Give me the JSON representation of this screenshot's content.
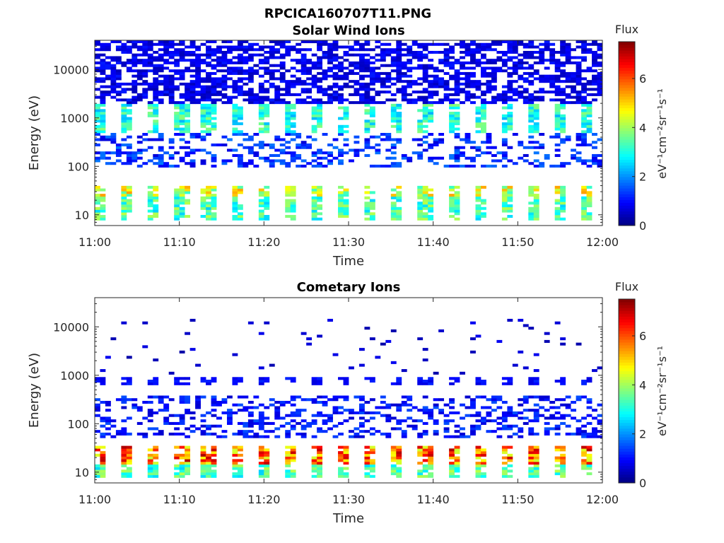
{
  "figure": {
    "title": "RPCICA160707T11.PNG"
  },
  "chart_data": [
    {
      "type": "heatmap",
      "title": "Solar Wind Ions",
      "xlabel": "Time",
      "ylabel": "Energy (eV)",
      "x_ticks": [
        "11:00",
        "11:10",
        "11:20",
        "11:30",
        "11:40",
        "11:50",
        "12:00"
      ],
      "xlim": [
        "11:00",
        "12:00"
      ],
      "y_scale": "log",
      "y_ticks": [
        10,
        100,
        1000,
        10000
      ],
      "y_tick_labels": [
        "10",
        "100",
        "1000",
        "10000"
      ],
      "ylim": [
        6,
        40000
      ],
      "colorbar": {
        "title": "Flux",
        "label": "eV⁻¹cm⁻²sr⁻¹s⁻¹",
        "ticks": [
          0,
          2,
          4,
          6
        ],
        "tick_labels": [
          "0",
          "2",
          "4",
          "6"
        ],
        "range": [
          0,
          7.5
        ],
        "colormap": "jet"
      },
      "pattern": {
        "sweep_period_min": 3.2,
        "bands": [
          {
            "energy_eV": [
              25,
              40
            ],
            "flux": 4.5,
            "note": "pulsed"
          },
          {
            "energy_eV": [
              8,
              25
            ],
            "flux": 3.5,
            "note": "pulsed"
          },
          {
            "energy_eV": [
              500,
              2000
            ],
            "flux": 3.2,
            "note": "pulsed"
          },
          {
            "energy_eV": [
              2000,
              40000
            ],
            "flux": 0.8,
            "note": "sparse high-energy background"
          },
          {
            "energy_eV": [
              100,
              500
            ],
            "flux": 1.3,
            "note": "sparse"
          }
        ]
      }
    },
    {
      "type": "heatmap",
      "title": "Cometary Ions",
      "xlabel": "Time",
      "ylabel": "Energy (eV)",
      "x_ticks": [
        "11:00",
        "11:10",
        "11:20",
        "11:30",
        "11:40",
        "11:50",
        "12:00"
      ],
      "xlim": [
        "11:00",
        "12:00"
      ],
      "y_scale": "log",
      "y_ticks": [
        10,
        100,
        1000,
        10000
      ],
      "y_tick_labels": [
        "10",
        "100",
        "1000",
        "10000"
      ],
      "ylim": [
        6,
        40000
      ],
      "colorbar": {
        "title": "Flux",
        "label": "eV⁻¹cm⁻²sr⁻¹s⁻¹",
        "ticks": [
          0,
          2,
          4,
          6
        ],
        "tick_labels": [
          "0",
          "2",
          "4",
          "6"
        ],
        "range": [
          0,
          7.5
        ],
        "colormap": "jet"
      },
      "pattern": {
        "sweep_period_min": 3.2,
        "bands": [
          {
            "energy_eV": [
              15,
              35
            ],
            "flux": 6.0,
            "note": "pulsed, peak"
          },
          {
            "energy_eV": [
              8,
              15
            ],
            "flux": 3.5,
            "note": "pulsed"
          },
          {
            "energy_eV": [
              600,
              900
            ],
            "flux": 1.0,
            "note": "pulsed"
          },
          {
            "energy_eV": [
              50,
              400
            ],
            "flux": 1.1,
            "note": "sparse"
          },
          {
            "energy_eV": [
              1000,
              15000
            ],
            "flux": 0.6,
            "note": "rare dots"
          }
        ]
      }
    }
  ]
}
